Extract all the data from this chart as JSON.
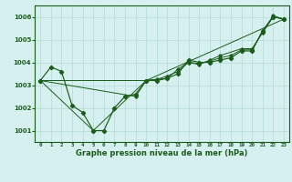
{
  "background_color": "#d6f0f0",
  "plot_bg_color": "#d6f0f0",
  "grid_color": "#b8ddd8",
  "line_color": "#1a5c1a",
  "title": "Graphe pression niveau de la mer (hPa)",
  "ylim": [
    1000.5,
    1006.5
  ],
  "xlim": [
    -0.5,
    23.5
  ],
  "yticks": [
    1001,
    1002,
    1003,
    1004,
    1005,
    1006
  ],
  "xtick_labels": [
    "0",
    "1",
    "2",
    "3",
    "4",
    "5",
    "6",
    "7",
    "8",
    "9",
    "10",
    "11",
    "12",
    "13",
    "14",
    "15",
    "16",
    "17",
    "18",
    "19",
    "20",
    "21",
    "22",
    "23"
  ],
  "series": [
    [
      1003.2,
      1003.8,
      1003.6,
      1002.1,
      1001.8,
      1001.0,
      1001.0,
      1002.0,
      1002.5,
      1002.6,
      1003.2,
      1003.2,
      1003.3,
      1003.5,
      1004.1,
      1004.0,
      1004.0,
      1004.1,
      1004.2,
      1004.5,
      1004.5,
      1005.4,
      1006.0,
      1005.9
    ],
    [
      1003.2,
      null,
      null,
      null,
      null,
      1001.0,
      null,
      null,
      null,
      null,
      1003.2,
      null,
      null,
      null,
      null,
      null,
      null,
      null,
      null,
      null,
      null,
      null,
      null,
      1005.9
    ],
    [
      1003.2,
      null,
      null,
      null,
      null,
      null,
      null,
      null,
      null,
      1002.5,
      1003.2,
      null,
      1003.3,
      1003.7,
      1004.0,
      1003.9,
      1004.1,
      1004.3,
      null,
      1004.6,
      1004.6,
      1005.3,
      1006.0,
      1005.9
    ],
    [
      1003.2,
      null,
      null,
      null,
      null,
      null,
      null,
      null,
      null,
      null,
      1003.2,
      1003.25,
      1003.4,
      1003.6,
      1004.0,
      1003.95,
      1004.05,
      1004.2,
      1004.3,
      1004.55,
      1004.55,
      1005.35,
      1006.05,
      1005.9
    ]
  ]
}
